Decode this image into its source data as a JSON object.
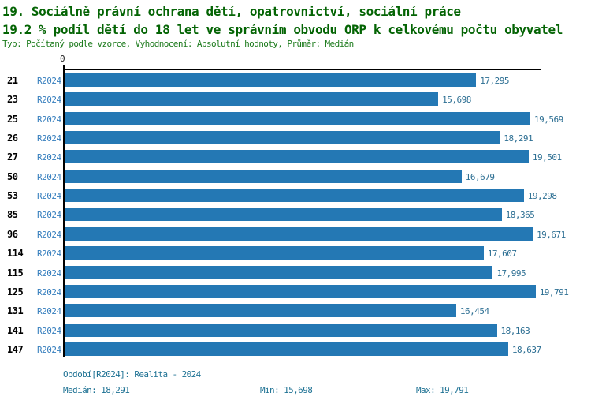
{
  "header": {
    "title_line1": "19. Sociálně právní ochrana dětí, opatrovnictví, sociální práce",
    "title_line2": "19.2 % podíl dětí do 18 let ve správním obvodu ORP k celkovému počtu obyvatel",
    "meta": "Typ: Počítaný podle vzorce, Vyhodnocení: Absolutní hodnoty, Průměr: Medián"
  },
  "chart_data": {
    "type": "bar",
    "orientation": "horizontal",
    "title": "19. Sociálně právní ochrana dětí, opatrovnictví, sociální práce",
    "subtitle": "19.2 % podíl dětí do 18 let ve správním obvodu ORP k celkovému počtu obyvatel",
    "series_label": "R2024",
    "categories": [
      "21",
      "23",
      "25",
      "26",
      "27",
      "50",
      "53",
      "85",
      "96",
      "114",
      "115",
      "125",
      "131",
      "141",
      "147"
    ],
    "values": [
      17295,
      15698,
      19569,
      18291,
      19501,
      16679,
      19298,
      18365,
      19671,
      17607,
      17995,
      19791,
      16454,
      18163,
      18637
    ],
    "values_formatted": [
      "17,295",
      "15,698",
      "19,569",
      "18,291",
      "19,501",
      "16,679",
      "19,298",
      "18,365",
      "19,671",
      "17,607",
      "17,995",
      "19,791",
      "16,454",
      "18,163",
      "18,637"
    ],
    "zero_label": "0",
    "axis_min": 0,
    "axis_max": 20000,
    "median": 18291,
    "min": 15698,
    "max": 19791,
    "grid": false,
    "legend": "none",
    "bar_color": "#2478b4",
    "median_line_color": "#2478b4"
  },
  "footer": {
    "period": "Období[R2024]: Realita - 2024",
    "median": "Medián: 18,291",
    "min": "Min: 15,698",
    "max": "Max: 19,791"
  }
}
